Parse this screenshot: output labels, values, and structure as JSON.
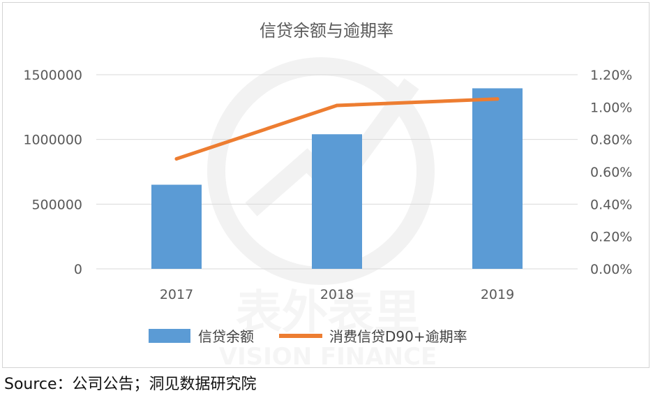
{
  "chart_data": {
    "type": "bar",
    "title": "信贷余额与逾期率",
    "categories": [
      "2017",
      "2018",
      "2019"
    ],
    "series": [
      {
        "name": "信贷余额",
        "kind": "bar",
        "axis": "left",
        "color": "#5b9bd5",
        "values": [
          650000,
          1040000,
          1395000
        ]
      },
      {
        "name": "消费信贷D90+逾期率",
        "kind": "line",
        "axis": "right",
        "color": "#ed7d31",
        "values": [
          0.0068,
          0.0101,
          0.0105
        ]
      }
    ],
    "y_left": {
      "min": 0,
      "max": 1500000,
      "ticks": [
        "0",
        "500000",
        "1000000",
        "1500000"
      ]
    },
    "y_right": {
      "min": 0,
      "max": 0.012,
      "ticks": [
        "0.00%",
        "0.20%",
        "0.40%",
        "0.60%",
        "0.80%",
        "1.00%",
        "1.20%"
      ]
    },
    "grid": true,
    "legend_position": "bottom"
  },
  "watermark": {
    "cn": "表外表里",
    "en": "VISION FINANCE"
  },
  "source": "Source：公司公告；洞见数据研究院"
}
